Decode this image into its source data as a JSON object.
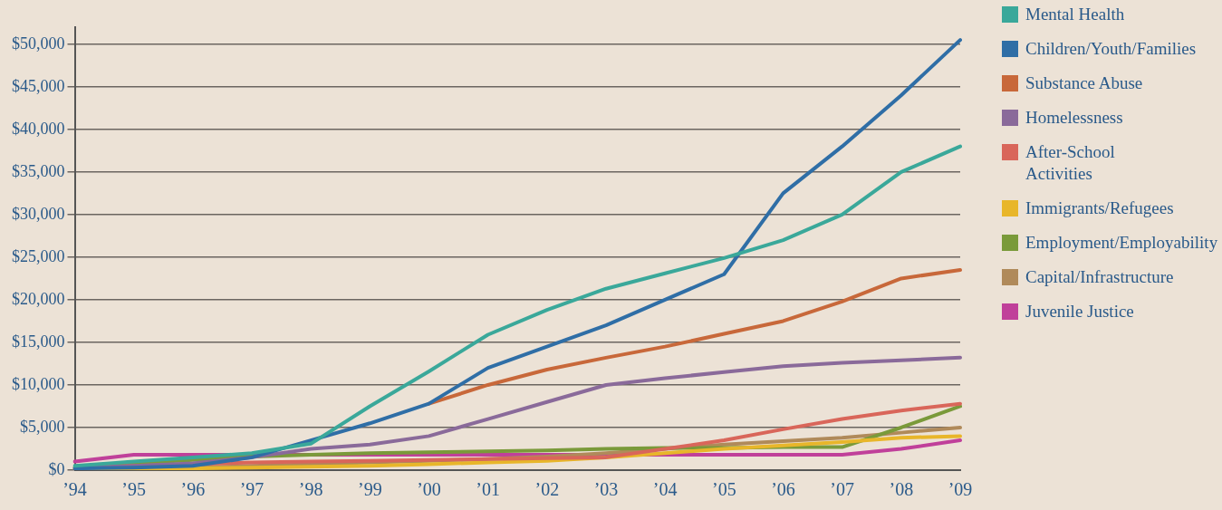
{
  "chart_data": {
    "type": "line",
    "categories": [
      "’94",
      "’95",
      "’96",
      "’97",
      "’98",
      "’99",
      "’00",
      "’01",
      "’02",
      "’03",
      "’04",
      "’05",
      "’06",
      "’07",
      "’08",
      "’09"
    ],
    "ylim": [
      0,
      52000
    ],
    "yticks": [
      {
        "value": 0,
        "label": "$0"
      },
      {
        "value": 5000,
        "label": "$5,000"
      },
      {
        "value": 10000,
        "label": "$10,000"
      },
      {
        "value": 15000,
        "label": "$15,000"
      },
      {
        "value": 20000,
        "label": "$20,000"
      },
      {
        "value": 25000,
        "label": "$25,000"
      },
      {
        "value": 30000,
        "label": "$30,000"
      },
      {
        "value": 35000,
        "label": "$35,000"
      },
      {
        "value": 40000,
        "label": "$40,000"
      },
      {
        "value": 45000,
        "label": "$45,000"
      },
      {
        "value": 50000,
        "label": "$50,000"
      }
    ],
    "grid": "y",
    "legend": "right",
    "marker": "none",
    "series": [
      {
        "name": "Mental Health",
        "color": "#3aa89a",
        "values": [
          500,
          1000,
          1500,
          2000,
          3100,
          7500,
          11600,
          15900,
          18800,
          21300,
          23100,
          24900,
          27000,
          30000,
          35000,
          38000
        ]
      },
      {
        "name": "Children/Youth/Families",
        "color": "#2f6ea6",
        "values": [
          200,
          300,
          500,
          1500,
          3500,
          5500,
          7800,
          12000,
          14500,
          17000,
          20000,
          23000,
          32500,
          38000,
          44000,
          50500
        ]
      },
      {
        "name": "Substance Abuse",
        "color": "#c8683a",
        "values": [
          null,
          null,
          null,
          null,
          null,
          null,
          7800,
          10000,
          11800,
          13200,
          14500,
          16000,
          17500,
          19800,
          22500,
          23500
        ]
      },
      {
        "name": "Homelessness",
        "color": "#8a6a9a",
        "values": [
          200,
          500,
          800,
          1500,
          2500,
          3000,
          4000,
          6000,
          8000,
          10000,
          10800,
          11500,
          12200,
          12600,
          12900,
          13200
        ]
      },
      {
        "name": "After-School Activities",
        "color": "#d9665a",
        "values": [
          300,
          500,
          700,
          900,
          1000,
          1100,
          1200,
          1300,
          1400,
          1500,
          2500,
          3500,
          4800,
          6000,
          7000,
          7800
        ]
      },
      {
        "name": "Immigrants/Refugees",
        "color": "#e8b62a",
        "values": [
          0,
          100,
          200,
          300,
          400,
          500,
          700,
          900,
          1100,
          1500,
          2000,
          2500,
          2900,
          3300,
          3800,
          4000
        ]
      },
      {
        "name": "Employment/Employability",
        "color": "#7a9a3a",
        "values": [
          300,
          800,
          1200,
          1600,
          1800,
          2000,
          2100,
          2200,
          2300,
          2500,
          2600,
          2600,
          2700,
          2700,
          5000,
          7500
        ]
      },
      {
        "name": "Capital/Infrastructure",
        "color": "#b08a5a",
        "values": [
          100,
          200,
          300,
          500,
          700,
          900,
          1100,
          1300,
          1600,
          2000,
          2500,
          3000,
          3400,
          3800,
          4400,
          5000
        ]
      },
      {
        "name": "Juvenile Justice",
        "color": "#c0409a",
        "values": [
          1000,
          1800,
          1800,
          1800,
          1800,
          1800,
          1800,
          1800,
          1800,
          1800,
          1800,
          1800,
          1800,
          1800,
          2500,
          3500
        ]
      }
    ]
  }
}
